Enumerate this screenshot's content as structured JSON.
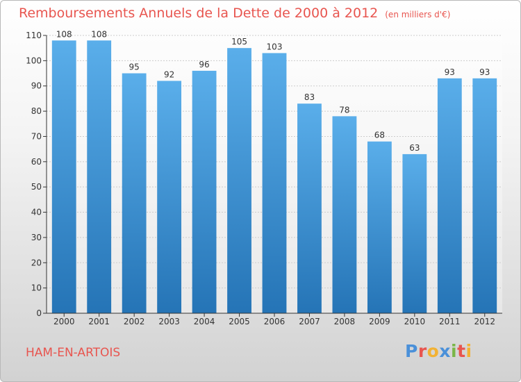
{
  "chart_data": {
    "type": "bar",
    "title": "Remboursements Annuels de la Dette de 2000 à 2012",
    "subtitle": "(en milliers d'€)",
    "categories": [
      "2000",
      "2001",
      "2002",
      "2003",
      "2004",
      "2005",
      "2006",
      "2007",
      "2008",
      "2009",
      "2010",
      "2011",
      "2012"
    ],
    "values": [
      108,
      108,
      95,
      92,
      96,
      105,
      103,
      83,
      78,
      68,
      63,
      93,
      93
    ],
    "ylim": [
      0,
      110
    ],
    "yticks": [
      0,
      10,
      20,
      30,
      40,
      50,
      60,
      70,
      80,
      90,
      100,
      110
    ],
    "grid": true,
    "bar_color_top": "#5aaeea",
    "bar_color_bottom": "#2574b6"
  },
  "location": "HAM-EN-ARTOIS",
  "logo": {
    "text": "Proxiti",
    "letters": [
      {
        "ch": "P",
        "color": "#4a90d9"
      },
      {
        "ch": "r",
        "color": "#e8554f"
      },
      {
        "ch": "o",
        "color": "#f2b233"
      },
      {
        "ch": "x",
        "color": "#4a90d9"
      },
      {
        "ch": "i",
        "color": "#7ab648"
      },
      {
        "ch": "t",
        "color": "#e8554f"
      },
      {
        "ch": "i",
        "color": "#f2b233"
      }
    ]
  },
  "colors": {
    "title": "#e8554f",
    "axis": "#333333",
    "grid": "#cccccc"
  }
}
